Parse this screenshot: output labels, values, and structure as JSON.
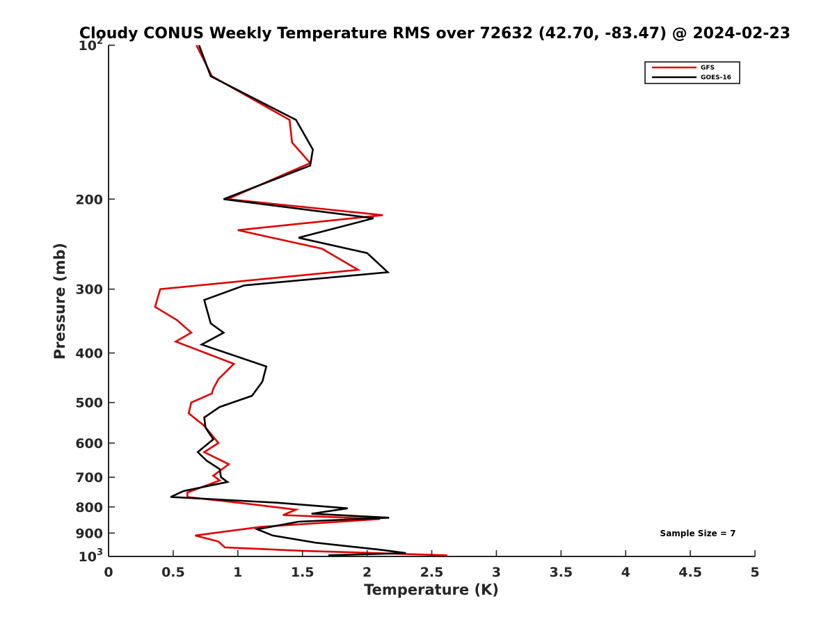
{
  "chart_data": {
    "type": "line",
    "title": "Cloudy CONUS Weekly Temperature RMS over 72632 (42.70, -83.47) @ 2024-02-23",
    "xlabel": "Temperature (K)",
    "ylabel": "Pressure (mb)",
    "xlim": [
      0,
      5
    ],
    "ylim": [
      100,
      1000
    ],
    "yscale": "log",
    "y_reversed": true,
    "grid": false,
    "legend_placement": "top-right",
    "xticks": [
      0,
      0.5,
      1,
      1.5,
      2,
      2.5,
      3,
      3.5,
      4,
      4.5,
      5
    ],
    "xtick_labels": [
      "0",
      "0.5",
      "1",
      "1.5",
      "2",
      "2.5",
      "3",
      "3.5",
      "4",
      "4.5",
      "5"
    ],
    "yticks": [
      100,
      200,
      300,
      400,
      500,
      600,
      700,
      800,
      900,
      1000
    ],
    "ytick_labels": [
      {
        "base": "10",
        "exp": "2"
      },
      {
        "base": "200",
        "exp": ""
      },
      {
        "base": "300",
        "exp": ""
      },
      {
        "base": "400",
        "exp": ""
      },
      {
        "base": "500",
        "exp": ""
      },
      {
        "base": "600",
        "exp": ""
      },
      {
        "base": "700",
        "exp": ""
      },
      {
        "base": "800",
        "exp": ""
      },
      {
        "base": "900",
        "exp": ""
      },
      {
        "base": "10",
        "exp": "3"
      }
    ],
    "annotation": "Sample Size = 7",
    "series": [
      {
        "name": "GFS",
        "color": "#e00000",
        "points": [
          [
            0.68,
            100
          ],
          [
            0.8,
            115
          ],
          [
            1.4,
            140
          ],
          [
            1.42,
            155
          ],
          [
            1.56,
            170
          ],
          [
            0.92,
            200
          ],
          [
            2.12,
            215
          ],
          [
            1.0,
            230
          ],
          [
            1.65,
            250
          ],
          [
            1.93,
            275
          ],
          [
            0.4,
            300
          ],
          [
            0.36,
            325
          ],
          [
            0.53,
            345
          ],
          [
            0.64,
            365
          ],
          [
            0.52,
            380
          ],
          [
            0.97,
            420
          ],
          [
            0.85,
            450
          ],
          [
            0.81,
            470
          ],
          [
            0.8,
            480
          ],
          [
            0.64,
            500
          ],
          [
            0.62,
            525
          ],
          [
            0.74,
            555
          ],
          [
            0.85,
            600
          ],
          [
            0.74,
            625
          ],
          [
            0.93,
            660
          ],
          [
            0.81,
            695
          ],
          [
            0.86,
            710
          ],
          [
            0.61,
            750
          ],
          [
            0.61,
            765
          ],
          [
            1.1,
            790
          ],
          [
            1.45,
            810
          ],
          [
            1.35,
            830
          ],
          [
            2.1,
            845
          ],
          [
            1.18,
            875
          ],
          [
            0.67,
            910
          ],
          [
            0.85,
            935
          ],
          [
            0.9,
            960
          ],
          [
            1.5,
            975
          ],
          [
            2.62,
            995
          ]
        ]
      },
      {
        "name": "GOES-16",
        "color": "#000000",
        "points": [
          [
            0.7,
            100
          ],
          [
            0.79,
            115
          ],
          [
            1.45,
            140
          ],
          [
            1.58,
            160
          ],
          [
            1.56,
            172
          ],
          [
            0.89,
            200
          ],
          [
            2.05,
            218
          ],
          [
            1.47,
            238
          ],
          [
            2.0,
            255
          ],
          [
            2.16,
            278
          ],
          [
            1.05,
            295
          ],
          [
            0.74,
            315
          ],
          [
            0.79,
            350
          ],
          [
            0.89,
            365
          ],
          [
            0.72,
            385
          ],
          [
            1.22,
            425
          ],
          [
            1.19,
            455
          ],
          [
            1.11,
            485
          ],
          [
            0.86,
            510
          ],
          [
            0.74,
            535
          ],
          [
            0.75,
            560
          ],
          [
            0.81,
            590
          ],
          [
            0.69,
            625
          ],
          [
            0.76,
            650
          ],
          [
            0.86,
            675
          ],
          [
            0.87,
            700
          ],
          [
            0.92,
            715
          ],
          [
            0.58,
            745
          ],
          [
            0.48,
            765
          ],
          [
            1.3,
            785
          ],
          [
            1.85,
            805
          ],
          [
            1.57,
            825
          ],
          [
            2.17,
            840
          ],
          [
            1.47,
            855
          ],
          [
            1.15,
            885
          ],
          [
            1.27,
            910
          ],
          [
            1.6,
            940
          ],
          [
            2.1,
            970
          ],
          [
            2.3,
            985
          ],
          [
            1.7,
            995
          ]
        ]
      }
    ]
  }
}
